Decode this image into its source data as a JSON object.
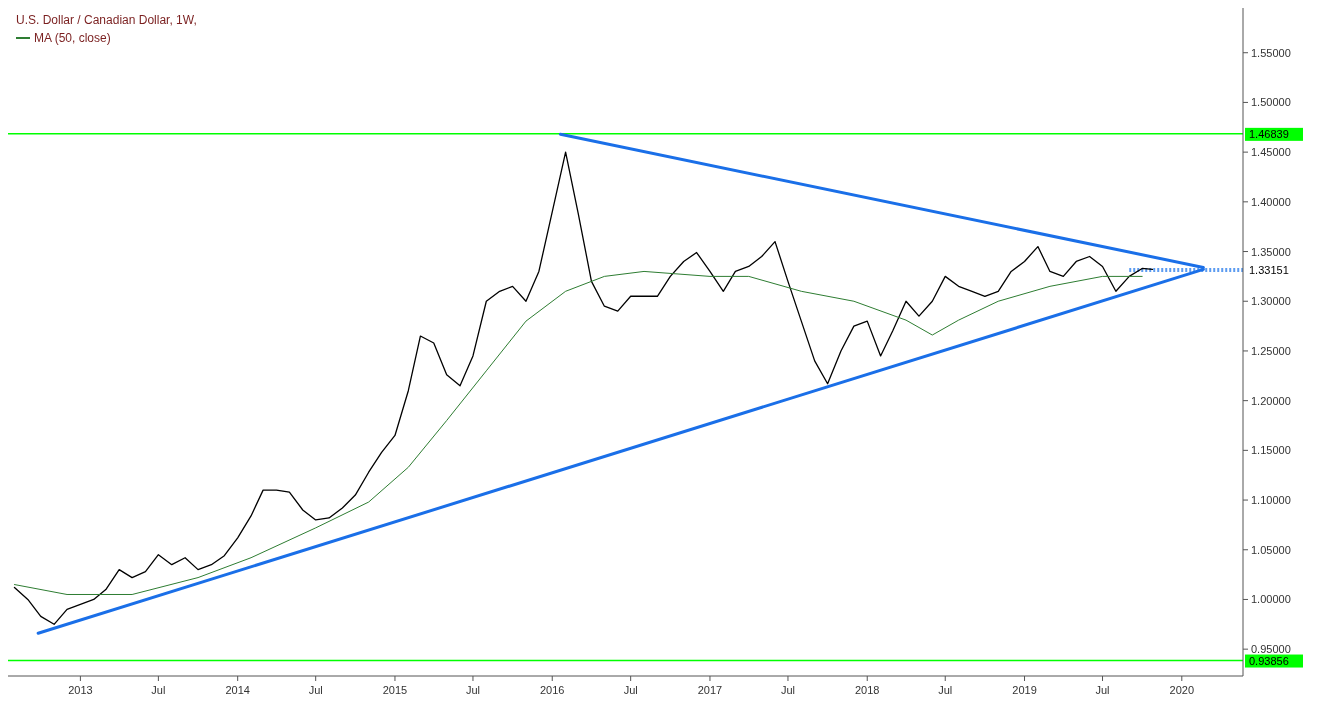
{
  "chart_data": {
    "type": "line",
    "title": "U.S. Dollar / Canadian Dollar, 1W,",
    "legend": "top left",
    "xlim": [
      "2012-07-17",
      "2020-05-22"
    ],
    "ylim": [
      0.923,
      1.595
    ],
    "xticks": [
      {
        "value": "2013-01-01",
        "label": "2013"
      },
      {
        "value": "2013-07-01",
        "label": "Jul"
      },
      {
        "value": "2014-01-01",
        "label": "2014"
      },
      {
        "value": "2014-07-01",
        "label": "Jul"
      },
      {
        "value": "2015-01-01",
        "label": "2015"
      },
      {
        "value": "2015-07-01",
        "label": "Jul"
      },
      {
        "value": "2016-01-01",
        "label": "2016"
      },
      {
        "value": "2016-07-01",
        "label": "Jul"
      },
      {
        "value": "2017-01-01",
        "label": "2017"
      },
      {
        "value": "2017-07-01",
        "label": "Jul"
      },
      {
        "value": "2018-01-01",
        "label": "2018"
      },
      {
        "value": "2018-07-01",
        "label": "Jul"
      },
      {
        "value": "2019-01-01",
        "label": "2019"
      },
      {
        "value": "2019-07-01",
        "label": "Jul"
      },
      {
        "value": "2020-01-01",
        "label": "2020"
      }
    ],
    "yticks": [
      {
        "value": 0.95,
        "label": "0.95000"
      },
      {
        "value": 1.0,
        "label": "1.00000"
      },
      {
        "value": 1.05,
        "label": "1.05000"
      },
      {
        "value": 1.1,
        "label": "1.10000"
      },
      {
        "value": 1.15,
        "label": "1.15000"
      },
      {
        "value": 1.2,
        "label": "1.20000"
      },
      {
        "value": 1.25,
        "label": "1.25000"
      },
      {
        "value": 1.3,
        "label": "1.30000"
      },
      {
        "value": 1.35,
        "label": "1.35000"
      },
      {
        "value": 1.4,
        "label": "1.40000"
      },
      {
        "value": 1.45,
        "label": "1.45000"
      },
      {
        "value": 1.5,
        "label": "1.50000"
      },
      {
        "value": 1.55,
        "label": "1.55000"
      }
    ],
    "ref_lines": [
      {
        "axis": "y",
        "value": 1.46839,
        "label": "1.46839",
        "color": "#00ff00"
      },
      {
        "axis": "y",
        "value": 0.93856,
        "label": "0.93856",
        "color": "#00ff00"
      },
      {
        "axis": "y",
        "value": 1.33151,
        "label": "1.33151",
        "color": "#5b9bf0",
        "line_style": "dotted"
      }
    ],
    "series": [
      {
        "color": "#000000",
        "x": [
          "2012-08",
          "2012-09",
          "2012-10",
          "2012-11",
          "2012-12",
          "2013-01",
          "2013-02",
          "2013-03",
          "2013-04",
          "2013-05",
          "2013-06",
          "2013-07",
          "2013-08",
          "2013-09",
          "2013-10",
          "2013-11",
          "2013-12",
          "2014-01",
          "2014-02",
          "2014-03",
          "2014-04",
          "2014-05",
          "2014-06",
          "2014-07",
          "2014-08",
          "2014-09",
          "2014-10",
          "2014-11",
          "2014-12",
          "2015-01",
          "2015-02",
          "2015-03",
          "2015-04",
          "2015-05",
          "2015-06",
          "2015-07",
          "2015-08",
          "2015-09",
          "2015-10",
          "2015-11",
          "2015-12",
          "2016-01",
          "2016-02",
          "2016-03",
          "2016-04",
          "2016-05",
          "2016-06",
          "2016-07",
          "2016-08",
          "2016-09",
          "2016-10",
          "2016-11",
          "2016-12",
          "2017-01",
          "2017-02",
          "2017-03",
          "2017-04",
          "2017-05",
          "2017-06",
          "2017-07",
          "2017-08",
          "2017-09",
          "2017-10",
          "2017-11",
          "2017-12",
          "2018-01",
          "2018-02",
          "2018-03",
          "2018-04",
          "2018-05",
          "2018-06",
          "2018-07",
          "2018-08",
          "2018-09",
          "2018-10",
          "2018-11",
          "2018-12",
          "2019-01",
          "2019-02",
          "2019-03",
          "2019-04",
          "2019-05",
          "2019-06",
          "2019-07",
          "2019-08",
          "2019-09",
          "2019-10",
          "2019-10-25"
        ],
        "values": [
          1.012,
          1.0,
          0.983,
          0.975,
          0.99,
          0.995,
          1.0,
          1.01,
          1.03,
          1.022,
          1.028,
          1.045,
          1.035,
          1.042,
          1.03,
          1.035,
          1.044,
          1.062,
          1.084,
          1.11,
          1.11,
          1.108,
          1.09,
          1.08,
          1.082,
          1.092,
          1.105,
          1.128,
          1.148,
          1.165,
          1.21,
          1.265,
          1.258,
          1.226,
          1.215,
          1.245,
          1.3,
          1.31,
          1.315,
          1.3,
          1.33,
          1.39,
          1.45,
          1.389,
          1.32,
          1.295,
          1.29,
          1.305,
          1.305,
          1.305,
          1.325,
          1.34,
          1.349,
          1.33,
          1.31,
          1.33,
          1.335,
          1.345,
          1.36,
          1.32,
          1.28,
          1.24,
          1.217,
          1.25,
          1.275,
          1.28,
          1.245,
          1.27,
          1.3,
          1.285,
          1.3,
          1.325,
          1.315,
          1.31,
          1.305,
          1.31,
          1.33,
          1.34,
          1.355,
          1.33,
          1.325,
          1.34,
          1.345,
          1.335,
          1.31,
          1.325,
          1.333,
          1.332
        ]
      },
      {
        "name": "MA (50, close)",
        "color": "#2e7d32",
        "x": [
          "2012-08",
          "2012-12",
          "2013-05",
          "2013-10",
          "2014-02",
          "2014-07",
          "2014-11",
          "2015-02",
          "2015-05",
          "2015-08",
          "2015-11",
          "2016-02",
          "2016-05",
          "2016-08",
          "2017-01",
          "2017-04",
          "2017-08",
          "2017-12",
          "2018-04",
          "2018-06",
          "2018-08",
          "2018-11",
          "2019-03",
          "2019-07",
          "2019-10"
        ],
        "values": [
          1.015,
          1.005,
          1.005,
          1.022,
          1.042,
          1.072,
          1.098,
          1.133,
          1.18,
          1.23,
          1.28,
          1.31,
          1.325,
          1.33,
          1.325,
          1.325,
          1.31,
          1.3,
          1.281,
          1.266,
          1.281,
          1.3,
          1.315,
          1.325,
          1.325
        ]
      },
      {
        "color": "#1a6fe8",
        "x": [
          "2012-09-25",
          "2020-02-20"
        ],
        "values": [
          0.966,
          1.332
        ]
      },
      {
        "color": "#1a6fe8",
        "x": [
          "2016-01-20",
          "2020-02-20"
        ],
        "values": [
          1.468,
          1.334
        ]
      }
    ]
  }
}
